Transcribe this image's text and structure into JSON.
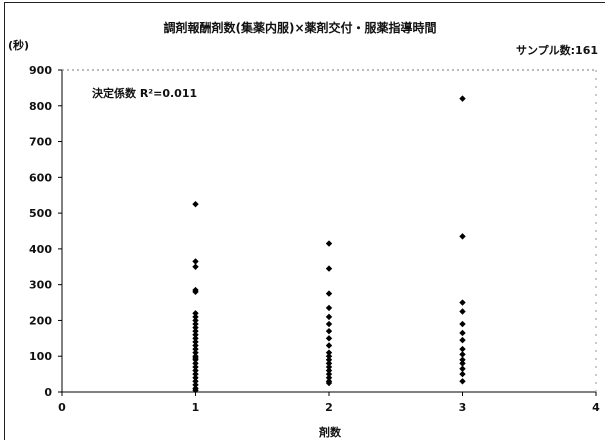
{
  "chart_data": {
    "type": "scatter",
    "title": "調剤報酬剤数(集薬内服)×薬剤交付・服薬指導時間",
    "sample_label": "サンプル数:161",
    "ylabel": "(秒)",
    "xlabel": "剤数",
    "annotation": "決定係数 R²=0.011",
    "xlim": [
      0,
      4
    ],
    "ylim": [
      0,
      900
    ],
    "x_ticks": [
      0,
      1,
      2,
      3,
      4
    ],
    "y_ticks": [
      0,
      100,
      200,
      300,
      400,
      500,
      600,
      700,
      800,
      900
    ],
    "grid": false,
    "marker": "diamond",
    "marker_color": "#000000",
    "points": [
      {
        "x": 1,
        "y": 525
      },
      {
        "x": 1,
        "y": 365
      },
      {
        "x": 1,
        "y": 350
      },
      {
        "x": 1,
        "y": 285
      },
      {
        "x": 1,
        "y": 280
      },
      {
        "x": 1,
        "y": 220
      },
      {
        "x": 1,
        "y": 210
      },
      {
        "x": 1,
        "y": 200
      },
      {
        "x": 1,
        "y": 190
      },
      {
        "x": 1,
        "y": 180
      },
      {
        "x": 1,
        "y": 170
      },
      {
        "x": 1,
        "y": 160
      },
      {
        "x": 1,
        "y": 150
      },
      {
        "x": 1,
        "y": 140
      },
      {
        "x": 1,
        "y": 130
      },
      {
        "x": 1,
        "y": 120
      },
      {
        "x": 1,
        "y": 110
      },
      {
        "x": 1,
        "y": 100
      },
      {
        "x": 1,
        "y": 95
      },
      {
        "x": 1,
        "y": 90
      },
      {
        "x": 1,
        "y": 80
      },
      {
        "x": 1,
        "y": 70
      },
      {
        "x": 1,
        "y": 60
      },
      {
        "x": 1,
        "y": 50
      },
      {
        "x": 1,
        "y": 40
      },
      {
        "x": 1,
        "y": 30
      },
      {
        "x": 1,
        "y": 20
      },
      {
        "x": 1,
        "y": 10
      },
      {
        "x": 1,
        "y": 5
      },
      {
        "x": 2,
        "y": 415
      },
      {
        "x": 2,
        "y": 345
      },
      {
        "x": 2,
        "y": 275
      },
      {
        "x": 2,
        "y": 235
      },
      {
        "x": 2,
        "y": 210
      },
      {
        "x": 2,
        "y": 190
      },
      {
        "x": 2,
        "y": 170
      },
      {
        "x": 2,
        "y": 150
      },
      {
        "x": 2,
        "y": 130
      },
      {
        "x": 2,
        "y": 110
      },
      {
        "x": 2,
        "y": 100
      },
      {
        "x": 2,
        "y": 90
      },
      {
        "x": 2,
        "y": 80
      },
      {
        "x": 2,
        "y": 70
      },
      {
        "x": 2,
        "y": 60
      },
      {
        "x": 2,
        "y": 50
      },
      {
        "x": 2,
        "y": 40
      },
      {
        "x": 2,
        "y": 30
      },
      {
        "x": 2,
        "y": 25
      },
      {
        "x": 3,
        "y": 820
      },
      {
        "x": 3,
        "y": 435
      },
      {
        "x": 3,
        "y": 250
      },
      {
        "x": 3,
        "y": 225
      },
      {
        "x": 3,
        "y": 190
      },
      {
        "x": 3,
        "y": 165
      },
      {
        "x": 3,
        "y": 145
      },
      {
        "x": 3,
        "y": 120
      },
      {
        "x": 3,
        "y": 105
      },
      {
        "x": 3,
        "y": 90
      },
      {
        "x": 3,
        "y": 80
      },
      {
        "x": 3,
        "y": 65
      },
      {
        "x": 3,
        "y": 50
      },
      {
        "x": 3,
        "y": 30
      }
    ]
  }
}
